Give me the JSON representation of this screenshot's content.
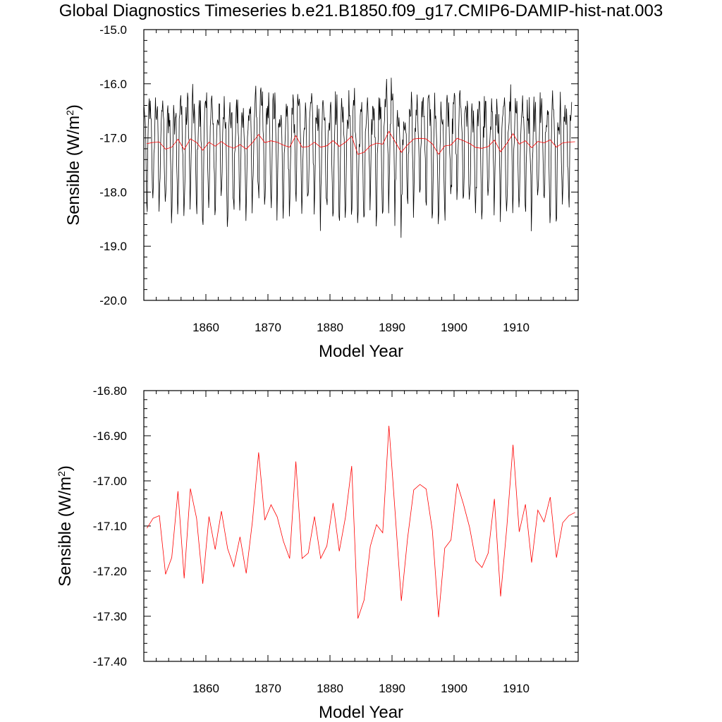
{
  "title": "Global Diagnostics Timeseries b.e21.B1850.f09_g17.CMIP6-DAMIP-hist-nat.003",
  "chart_data": [
    {
      "type": "line",
      "title": "",
      "xlabel": "Model Year",
      "ylabel": "Sensible (W/m",
      "ylabel_sup": "2",
      "ylabel_close": ")",
      "xlim": [
        1850,
        1920
      ],
      "ylim": [
        -20.0,
        -15.0
      ],
      "xticks": [
        1860,
        1870,
        1880,
        1890,
        1900,
        1910
      ],
      "yticks": [
        -20.0,
        -19.0,
        -18.0,
        -17.0,
        -16.0,
        -15.0
      ],
      "ytick_labels": [
        "-20.0",
        "-19.0",
        "-18.0",
        "-17.0",
        "-16.0",
        "-15.0"
      ],
      "series": [
        {
          "color": "#000000",
          "kind": "monthly",
          "start_year": 1850,
          "n_months": 828,
          "seasonal_cycle": [
            -16.6,
            -16.5,
            -16.8,
            -17.3,
            -17.8,
            -18.4,
            -18.2,
            -17.6,
            -17.0,
            -16.7,
            -16.5,
            -16.6
          ]
        },
        {
          "color": "#ff0000",
          "kind": "annual",
          "ref": "annual_means"
        }
      ]
    },
    {
      "type": "line",
      "title": "",
      "xlabel": "Model Year",
      "ylabel": "Sensible (W/m",
      "ylabel_sup": "2",
      "ylabel_close": ")",
      "xlim": [
        1850,
        1920
      ],
      "ylim": [
        -17.4,
        -16.8
      ],
      "xticks": [
        1860,
        1870,
        1880,
        1890,
        1900,
        1910
      ],
      "yticks": [
        -17.4,
        -17.3,
        -17.2,
        -17.1,
        -17.0,
        -16.9,
        -16.8
      ],
      "ytick_labels": [
        "-17.40",
        "-17.30",
        "-17.20",
        "-17.10",
        "-17.00",
        "-16.90",
        "-16.80"
      ],
      "series": [
        {
          "color": "#ff0000",
          "kind": "annual",
          "ref": "annual_means"
        }
      ]
    }
  ],
  "annual_means": {
    "years": [
      1850,
      1851,
      1852,
      1853,
      1854,
      1855,
      1856,
      1857,
      1858,
      1859,
      1860,
      1861,
      1862,
      1863,
      1864,
      1865,
      1866,
      1867,
      1868,
      1869,
      1870,
      1871,
      1872,
      1873,
      1874,
      1875,
      1876,
      1877,
      1878,
      1879,
      1880,
      1881,
      1882,
      1883,
      1884,
      1885,
      1886,
      1887,
      1888,
      1889,
      1890,
      1891,
      1892,
      1893,
      1894,
      1895,
      1896,
      1897,
      1898,
      1899,
      1900,
      1901,
      1902,
      1903,
      1904,
      1905,
      1906,
      1907,
      1908,
      1909,
      1910,
      1911,
      1912,
      1913,
      1914,
      1915,
      1916,
      1917,
      1918,
      1919
    ],
    "values": [
      -17.105,
      -17.083,
      -17.077,
      -17.207,
      -17.17,
      -17.023,
      -17.216,
      -17.017,
      -17.083,
      -17.228,
      -17.079,
      -17.152,
      -17.067,
      -17.15,
      -17.19,
      -17.124,
      -17.205,
      -17.09,
      -16.937,
      -17.087,
      -17.053,
      -17.08,
      -17.134,
      -17.172,
      -16.957,
      -17.172,
      -17.16,
      -17.079,
      -17.172,
      -17.144,
      -17.049,
      -17.156,
      -17.08,
      -16.967,
      -17.305,
      -17.264,
      -17.145,
      -17.097,
      -17.115,
      -16.878,
      -17.07,
      -17.266,
      -17.128,
      -17.02,
      -17.008,
      -17.018,
      -17.11,
      -17.302,
      -17.149,
      -17.131,
      -17.006,
      -17.051,
      -17.103,
      -17.177,
      -17.192,
      -17.16,
      -17.04,
      -17.256,
      -17.103,
      -16.92,
      -17.113,
      -17.052,
      -17.181,
      -17.065,
      -17.091,
      -17.036,
      -17.17,
      -17.093,
      -17.077,
      -17.07
    ]
  }
}
